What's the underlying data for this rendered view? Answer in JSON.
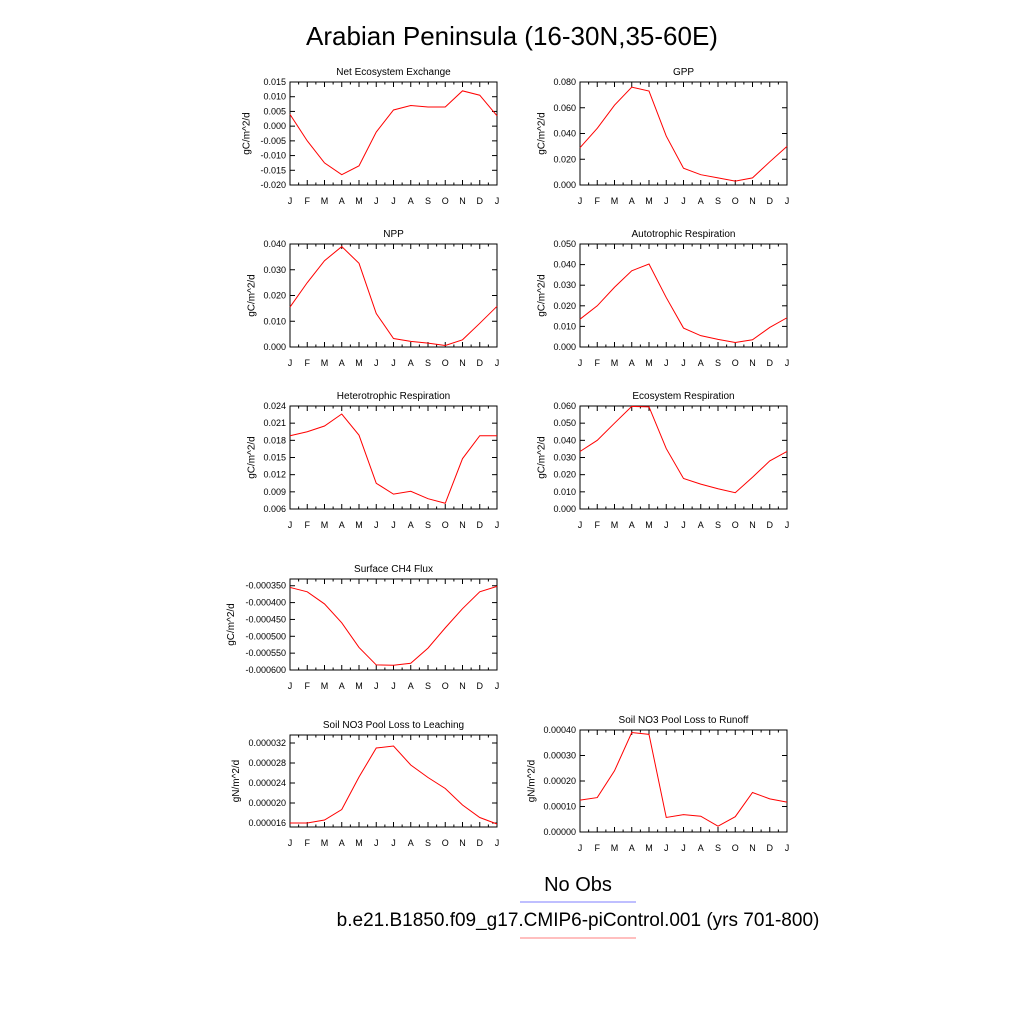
{
  "figure": {
    "title": "Arabian Peninsula (16-30N,35-60E)",
    "legend": [
      {
        "label": "No Obs",
        "color": "#7f7fff"
      },
      {
        "label": "b.e21.B1850.f09_g17.CMIP6-piControl.001 (yrs 701-800)",
        "color": "#ff7f7f"
      }
    ]
  },
  "chart_data": [
    {
      "type": "line",
      "title": "Net Ecosystem Exchange",
      "ylabel": "gC/m^2/d",
      "categories": [
        "J",
        "F",
        "M",
        "A",
        "M",
        "J",
        "J",
        "A",
        "S",
        "O",
        "N",
        "D",
        "J"
      ],
      "ylim": [
        -0.02,
        0.015
      ],
      "yticks": [
        "0.015",
        "0.010",
        "0.005",
        "0.000",
        "-0.005",
        "-0.010",
        "-0.015",
        "-0.020"
      ],
      "series": [
        {
          "color": "#ff0000",
          "values": [
            0.004,
            -0.005,
            -0.0125,
            -0.0165,
            -0.0135,
            -0.002,
            0.0055,
            0.007,
            0.0065,
            0.0065,
            0.012,
            0.0105,
            0.0035
          ]
        }
      ]
    },
    {
      "type": "line",
      "title": "GPP",
      "ylabel": "gC/m^2/d",
      "categories": [
        "J",
        "F",
        "M",
        "A",
        "M",
        "J",
        "J",
        "A",
        "S",
        "O",
        "N",
        "D",
        "J"
      ],
      "ylim": [
        0,
        0.08
      ],
      "yticks": [
        "0.080",
        "0.060",
        "0.040",
        "0.020",
        "0.000"
      ],
      "series": [
        {
          "color": "#ff0000",
          "values": [
            0.029,
            0.044,
            0.062,
            0.076,
            0.073,
            0.038,
            0.013,
            0.008,
            0.0055,
            0.003,
            0.0055,
            0.018,
            0.03
          ]
        }
      ]
    },
    {
      "type": "line",
      "title": "NPP",
      "ylabel": "gC/m^2/d",
      "categories": [
        "J",
        "F",
        "M",
        "A",
        "M",
        "J",
        "J",
        "A",
        "S",
        "O",
        "N",
        "D",
        "J"
      ],
      "ylim": [
        0,
        0.04
      ],
      "yticks": [
        "0.040",
        "0.030",
        "0.020",
        "0.010",
        "0.000"
      ],
      "series": [
        {
          "color": "#ff0000",
          "values": [
            0.0155,
            0.025,
            0.0335,
            0.039,
            0.0325,
            0.013,
            0.0033,
            0.0022,
            0.0015,
            0.0006,
            0.0028,
            0.0092,
            0.0158
          ]
        }
      ]
    },
    {
      "type": "line",
      "title": "Autotrophic Respiration",
      "ylabel": "gC/m^2/d",
      "categories": [
        "J",
        "F",
        "M",
        "A",
        "M",
        "J",
        "J",
        "A",
        "S",
        "O",
        "N",
        "D",
        "J"
      ],
      "ylim": [
        0,
        0.05
      ],
      "yticks": [
        "0.050",
        "0.040",
        "0.030",
        "0.020",
        "0.010",
        "0.000"
      ],
      "series": [
        {
          "color": "#ff0000",
          "values": [
            0.0135,
            0.02,
            0.029,
            0.037,
            0.0403,
            0.024,
            0.0092,
            0.0055,
            0.0037,
            0.0022,
            0.0035,
            0.0095,
            0.0142
          ]
        }
      ]
    },
    {
      "type": "line",
      "title": "Heterotrophic Respiration",
      "ylabel": "gC/m^2/d",
      "categories": [
        "J",
        "F",
        "M",
        "A",
        "M",
        "J",
        "J",
        "A",
        "S",
        "O",
        "N",
        "D",
        "J"
      ],
      "ylim": [
        0.006,
        0.024
      ],
      "yticks": [
        "0.024",
        "0.021",
        "0.018",
        "0.015",
        "0.012",
        "0.009",
        "0.006"
      ],
      "series": [
        {
          "color": "#ff0000",
          "values": [
            0.0188,
            0.0195,
            0.0205,
            0.0226,
            0.0189,
            0.0105,
            0.0086,
            0.0091,
            0.0078,
            0.007,
            0.0148,
            0.0188,
            0.0188
          ]
        }
      ]
    },
    {
      "type": "line",
      "title": "Ecosystem Respiration",
      "ylabel": "gC/m^2/d",
      "categories": [
        "J",
        "F",
        "M",
        "A",
        "M",
        "J",
        "J",
        "A",
        "S",
        "O",
        "N",
        "D",
        "J"
      ],
      "ylim": [
        0,
        0.06
      ],
      "yticks": [
        "0.060",
        "0.050",
        "0.040",
        "0.030",
        "0.020",
        "0.010",
        "0.000"
      ],
      "series": [
        {
          "color": "#ff0000",
          "values": [
            0.0335,
            0.04,
            0.05,
            0.0598,
            0.0595,
            0.0352,
            0.0178,
            0.0145,
            0.0118,
            0.0095,
            0.0185,
            0.028,
            0.0335
          ]
        }
      ]
    },
    {
      "type": "line",
      "title": "Surface CH4 Flux",
      "ylabel": "gC/m^2/d",
      "categories": [
        "J",
        "F",
        "M",
        "A",
        "M",
        "J",
        "J",
        "A",
        "S",
        "O",
        "N",
        "D",
        "J"
      ],
      "ylim": [
        -0.0006,
        -0.00033
      ],
      "yticks": [
        "-0.000350",
        "-0.000400",
        "-0.000450",
        "-0.000500",
        "-0.000550",
        "-0.000600"
      ],
      "series": [
        {
          "color": "#ff0000",
          "values": [
            -0.000355,
            -0.000368,
            -0.000404,
            -0.00046,
            -0.000533,
            -0.000585,
            -0.000586,
            -0.00058,
            -0.000535,
            -0.000475,
            -0.000418,
            -0.000368,
            -0.000352
          ]
        }
      ]
    },
    {
      "type": "line",
      "title": "Soil NO3 Pool Loss to Leaching",
      "ylabel": "gN/m^2/d",
      "categories": [
        "J",
        "F",
        "M",
        "A",
        "M",
        "J",
        "J",
        "A",
        "S",
        "O",
        "N",
        "D",
        "J"
      ],
      "ylim": [
        1.52e-05,
        3.36e-05
      ],
      "yticks": [
        "0.000032",
        "0.000028",
        "0.000024",
        "0.000020",
        "0.000016"
      ],
      "series": [
        {
          "color": "#ff0000",
          "values": [
            1.6e-05,
            1.6e-05,
            1.66e-05,
            1.87e-05,
            2.52e-05,
            3.1e-05,
            3.14e-05,
            2.76e-05,
            2.51e-05,
            2.29e-05,
            1.96e-05,
            1.71e-05,
            1.58e-05
          ]
        }
      ]
    },
    {
      "type": "line",
      "title": "Soil NO3 Pool Loss to Runoff",
      "ylabel": "gN/m^2/d",
      "categories": [
        "J",
        "F",
        "M",
        "A",
        "M",
        "J",
        "J",
        "A",
        "S",
        "O",
        "N",
        "D",
        "J"
      ],
      "ylim": [
        0,
        0.0004
      ],
      "yticks": [
        "0.00040",
        "0.00030",
        "0.00020",
        "0.00010",
        "0.00000"
      ],
      "series": [
        {
          "color": "#ff0000",
          "values": [
            0.000125,
            0.000135,
            0.00024,
            0.00039,
            0.000383,
            5.7e-05,
            6.8e-05,
            6.2e-05,
            2.3e-05,
            6e-05,
            0.000155,
            0.00013,
            0.000117
          ]
        }
      ]
    }
  ]
}
